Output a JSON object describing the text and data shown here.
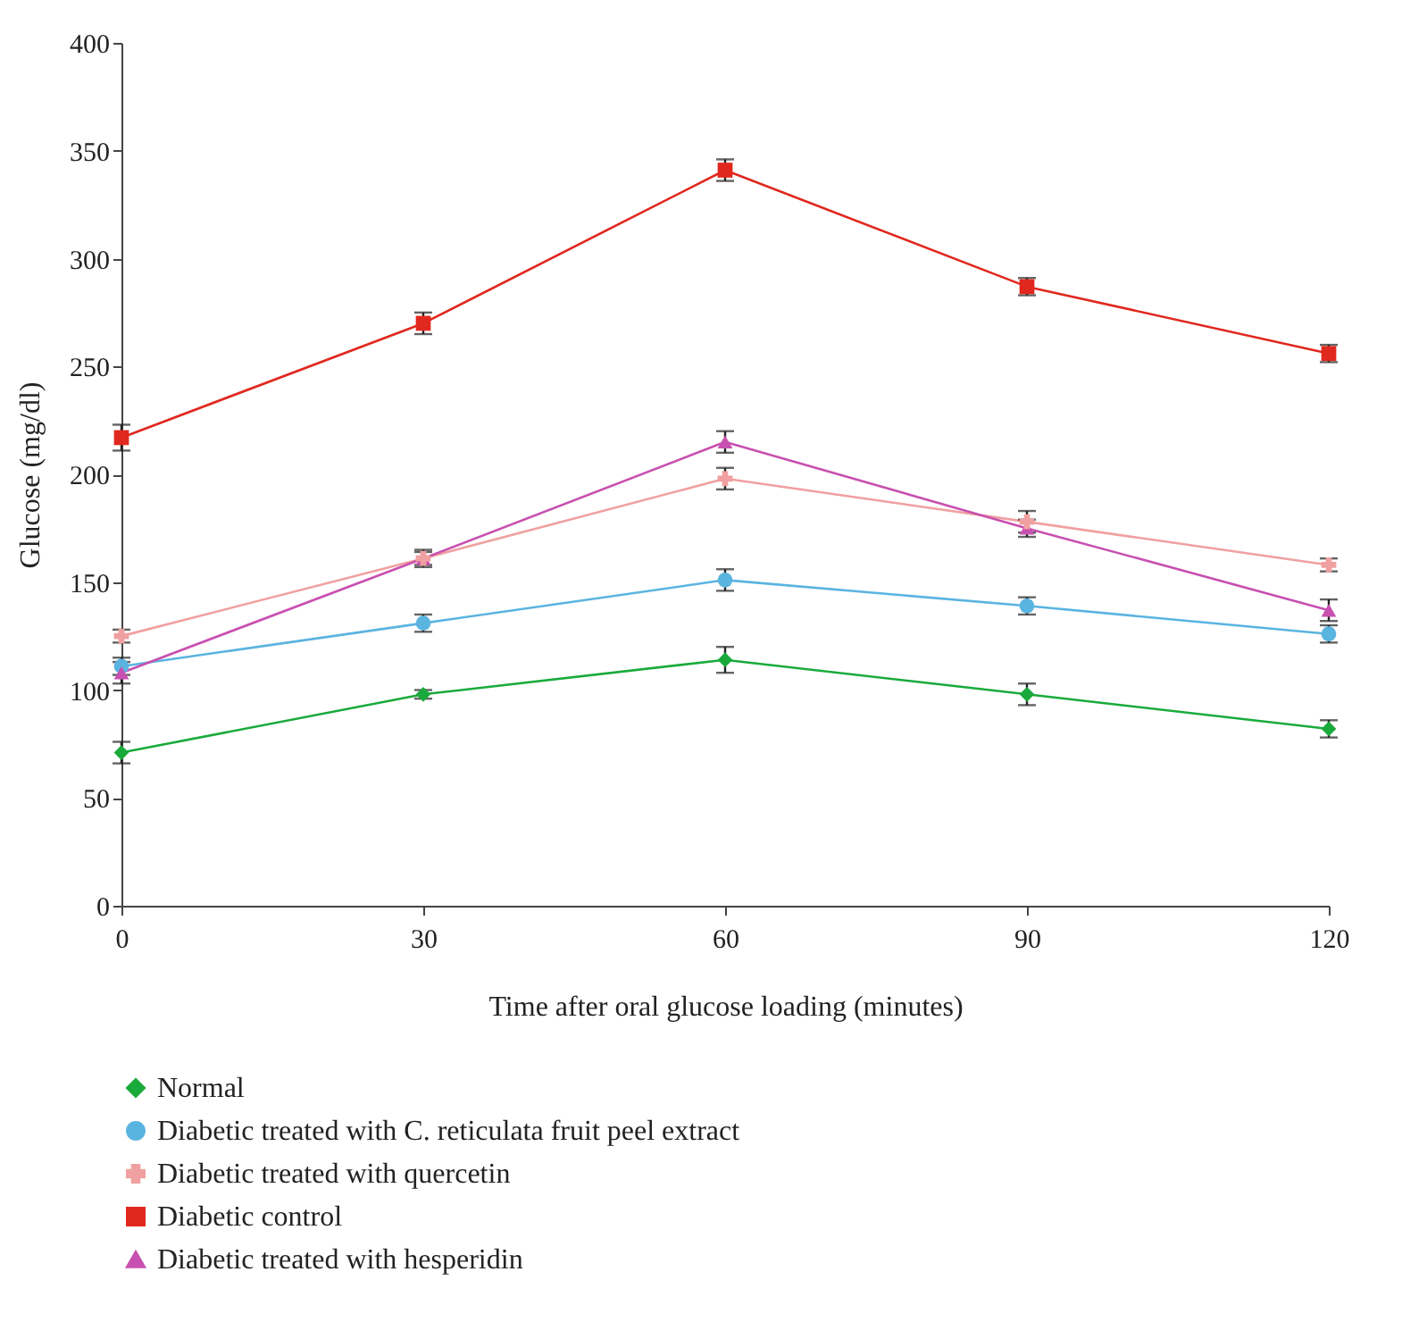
{
  "chart_data": {
    "type": "line",
    "xlabel": "Time after oral glucose loading (minutes)",
    "ylabel": "Glucose (mg/dl)",
    "x": [
      0,
      30,
      60,
      90,
      120
    ],
    "xlim": [
      0,
      120
    ],
    "xticks": [
      0,
      30,
      60,
      90,
      120
    ],
    "ylim": [
      0,
      400
    ],
    "yticks": [
      0,
      50,
      100,
      150,
      200,
      250,
      300,
      350,
      400
    ],
    "grid": false,
    "legend": "bottom",
    "series": [
      {
        "name": "Normal",
        "color": "#1aaa3c",
        "marker": "diamond",
        "values": [
          71,
          98,
          114,
          98,
          82
        ],
        "errors": [
          5,
          2,
          6,
          5,
          4
        ]
      },
      {
        "name": "Diabetic treated with C. reticulata fruit peel extract",
        "color": "#5ab4e0",
        "marker": "circle",
        "values": [
          111,
          131,
          151,
          139,
          126
        ],
        "errors": [
          4,
          4,
          5,
          4,
          4
        ]
      },
      {
        "name": "Diabetic treated with quercetin",
        "color": "#f0a0a0",
        "marker": "cross",
        "values": [
          125,
          161,
          198,
          178,
          158
        ],
        "errors": [
          3,
          4,
          5,
          5,
          3
        ]
      },
      {
        "name": "Diabetic control",
        "color": "#e0281e",
        "marker": "square",
        "values": [
          217,
          270,
          341,
          287,
          256
        ],
        "errors": [
          6,
          5,
          5,
          4,
          4
        ]
      },
      {
        "name": "Diabetic treated with hesperidin",
        "color": "#c850b0",
        "marker": "triangle",
        "values": [
          108,
          161,
          215,
          175,
          137
        ],
        "errors": [
          5,
          3,
          5,
          4,
          5
        ]
      }
    ]
  }
}
